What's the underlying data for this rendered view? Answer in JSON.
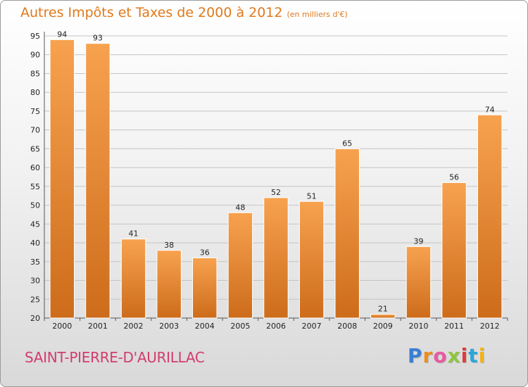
{
  "header": {
    "title": "Autres Impôts et Taxes de 2000 à 2012",
    "unit": "(en milliers d'€)"
  },
  "footer": {
    "commune": "SAINT-PIERRE-D'AURILLAC",
    "logo": "Proxiti"
  },
  "colors": {
    "bar_light": "#f7a24f",
    "bar_dark": "#cd6c1b",
    "title": "#e0791c",
    "commune": "#d23c6c"
  },
  "chart_data": {
    "type": "bar",
    "title": "Autres Impôts et Taxes de 2000 à 2012",
    "xlabel": "",
    "ylabel": "",
    "categories": [
      "2000",
      "2001",
      "2002",
      "2003",
      "2004",
      "2005",
      "2006",
      "2007",
      "2008",
      "2009",
      "2010",
      "2011",
      "2012"
    ],
    "values": [
      94,
      93,
      41,
      38,
      36,
      48,
      52,
      51,
      65,
      21,
      39,
      56,
      74
    ],
    "ylim": [
      20,
      95
    ],
    "yticks": [
      20,
      25,
      30,
      35,
      40,
      45,
      50,
      55,
      60,
      65,
      70,
      75,
      80,
      85,
      90,
      95
    ],
    "grid": true,
    "legend": "none"
  }
}
